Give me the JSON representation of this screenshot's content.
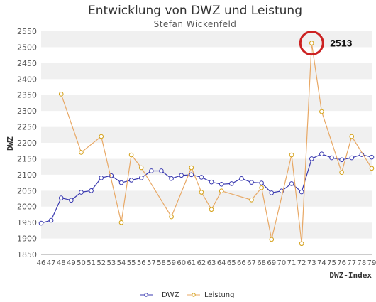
{
  "chart_data": {
    "type": "line",
    "title": "Entwicklung von DWZ und Leistung",
    "subtitle": "Stefan Wickenfeld",
    "xlabel": "DWZ-Index",
    "ylabel": "DWZ",
    "ylim": [
      1850,
      2550
    ],
    "yticks": [
      1850,
      1900,
      1950,
      2000,
      2050,
      2100,
      2150,
      2200,
      2250,
      2300,
      2350,
      2400,
      2450,
      2500,
      2550
    ],
    "x": [
      46,
      47,
      48,
      49,
      50,
      51,
      52,
      53,
      54,
      55,
      56,
      57,
      58,
      59,
      60,
      61,
      62,
      63,
      64,
      65,
      66,
      67,
      68,
      69,
      70,
      71,
      72,
      73,
      74,
      75,
      76,
      77,
      78,
      79
    ],
    "grid": "horizontal-bands",
    "legend_position": "bottom",
    "series": [
      {
        "name": "DWZ",
        "color": "#3a3ab0",
        "values": [
          1948,
          1957,
          2027,
          2020,
          2045,
          2050,
          2090,
          2097,
          2075,
          2083,
          2090,
          2112,
          2112,
          2088,
          2098,
          2100,
          2092,
          2077,
          2070,
          2072,
          2088,
          2076,
          2074,
          2043,
          2049,
          2072,
          2046,
          2150,
          2165,
          2153,
          2147,
          2153,
          2163,
          2155
        ]
      },
      {
        "name": "Leistung",
        "color": "#d4a017",
        "line_color": "#e8a865",
        "values": [
          null,
          null,
          2353,
          null,
          2170,
          null,
          2220,
          null,
          1950,
          2162,
          2122,
          null,
          null,
          1968,
          null,
          2122,
          2045,
          1991,
          2049,
          null,
          null,
          2021,
          2059,
          1897,
          null,
          2162,
          1884,
          2513,
          2298,
          null,
          2107,
          2220,
          null,
          2120
        ]
      }
    ],
    "annotations": [
      {
        "text": "2513",
        "x": 73,
        "y": 2513,
        "highlight": "circle",
        "highlight_color": "#cc2222"
      }
    ]
  }
}
